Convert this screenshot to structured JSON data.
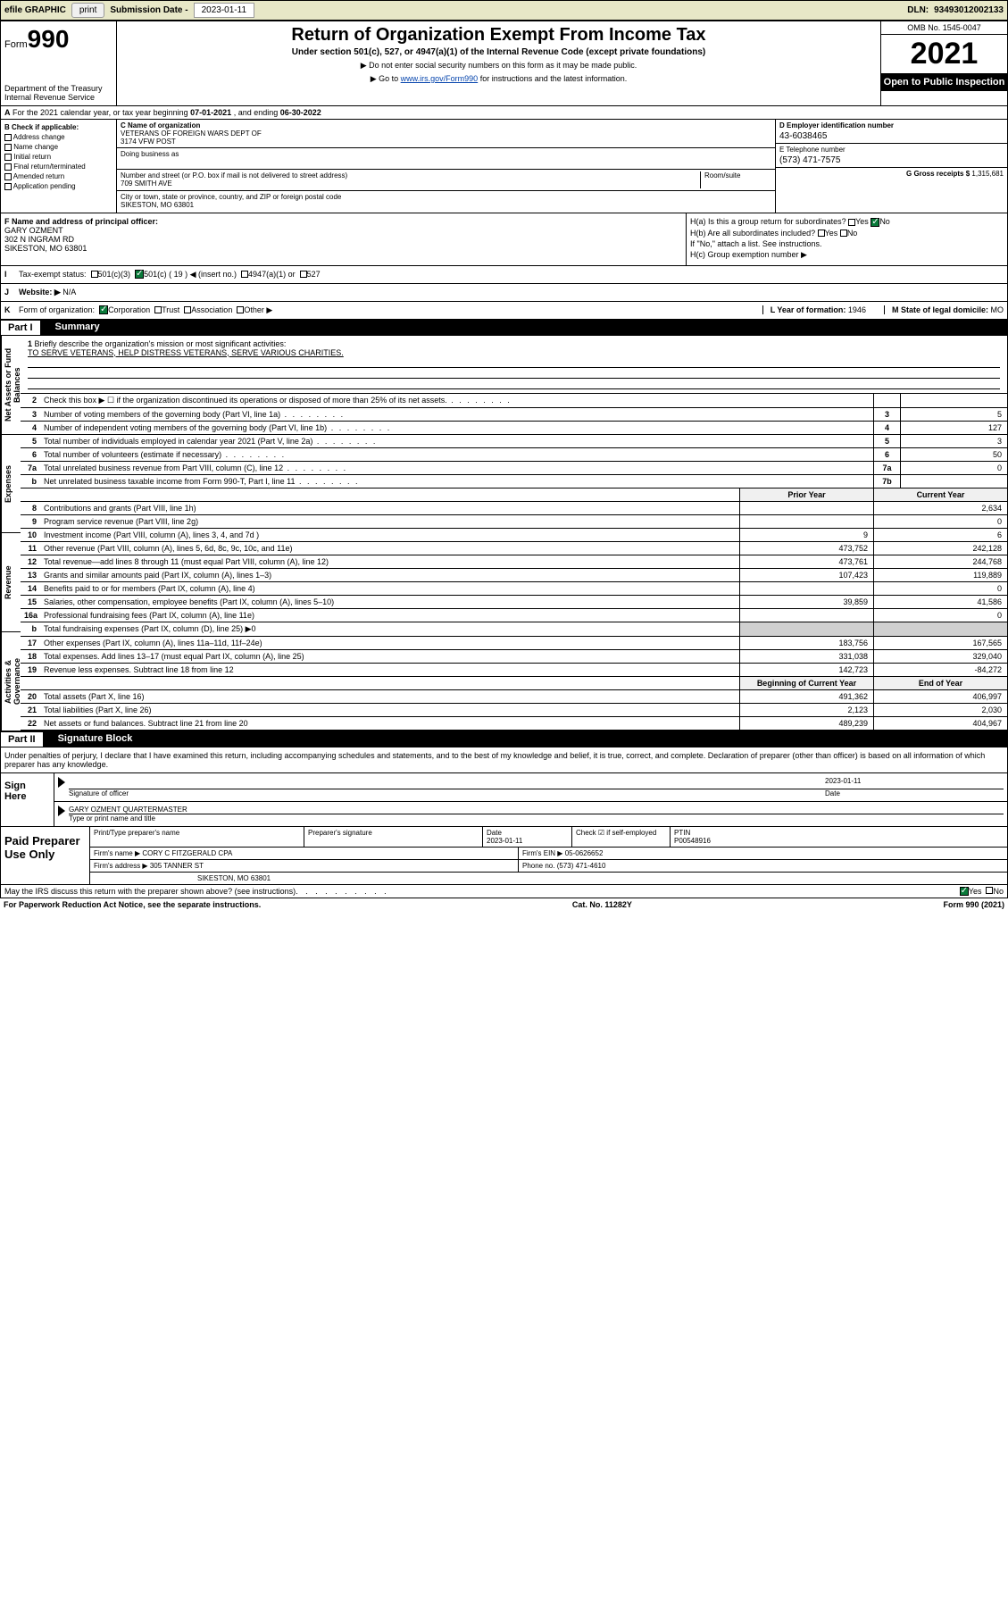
{
  "topbar": {
    "efile_label": "efile GRAPHIC",
    "print_btn": "print",
    "submission_label": "Submission Date -",
    "submission_date": "2023-01-11",
    "dln_label": "DLN:",
    "dln": "93493012002133"
  },
  "header": {
    "form_prefix": "Form",
    "form_number": "990",
    "dept": "Department of the Treasury",
    "irs": "Internal Revenue Service",
    "title": "Return of Organization Exempt From Income Tax",
    "subtitle": "Under section 501(c), 527, or 4947(a)(1) of the Internal Revenue Code (except private foundations)",
    "note1": "▶ Do not enter social security numbers on this form as it may be made public.",
    "note2_pre": "▶ Go to ",
    "note2_link": "www.irs.gov/Form990",
    "note2_post": " for instructions and the latest information.",
    "omb": "OMB No. 1545-0047",
    "year": "2021",
    "open_public": "Open to Public Inspection"
  },
  "row_a": {
    "label_a": "A",
    "text": "For the 2021 calendar year, or tax year beginning ",
    "begin": "07-01-2021",
    "mid": " , and ending ",
    "end": "06-30-2022"
  },
  "col_b": {
    "label": "B Check if applicable:",
    "opt1": "Address change",
    "opt2": "Name change",
    "opt3": "Initial return",
    "opt4": "Final return/terminated",
    "opt5": "Amended return",
    "opt6": "Application pending"
  },
  "col_c": {
    "c_label": "C Name of organization",
    "org_name1": "VETERANS OF FOREIGN WARS DEPT OF",
    "org_name2": "3174 VFW POST",
    "dba_label": "Doing business as",
    "addr_label": "Number and street (or P.O. box if mail is not delivered to street address)",
    "room_label": "Room/suite",
    "street": "709 SMITH AVE",
    "city_label": "City or town, state or province, country, and ZIP or foreign postal code",
    "city": "SIKESTON, MO  63801"
  },
  "col_de": {
    "d_label": "D Employer identification number",
    "ein": "43-6038465",
    "e_label": "E Telephone number",
    "phone": "(573) 471-7575",
    "g_label": "G Gross receipts $",
    "gross": "1,315,681"
  },
  "col_f": {
    "label": "F Name and address of principal officer:",
    "name": "GARY OZMENT",
    "addr1": "302 N INGRAM RD",
    "addr2": "SIKESTON, MO  63801"
  },
  "col_h": {
    "ha_label": "H(a)  Is this a group return for subordinates?",
    "hb_label": "H(b)  Are all subordinates included?",
    "hb_note": "If \"No,\" attach a list. See instructions.",
    "hc_label": "H(c)  Group exemption number ▶",
    "yes": "Yes",
    "no": "No"
  },
  "row_i": {
    "label": "I",
    "text": "Tax-exempt status:",
    "o1": "501(c)(3)",
    "o2": "501(c) ( 19 ) ◀ (insert no.)",
    "o3": "4947(a)(1) or",
    "o4": "527"
  },
  "row_j": {
    "label": "J",
    "text": "Website: ▶",
    "val": "N/A"
  },
  "row_k": {
    "label": "K",
    "text": "Form of organization:",
    "o1": "Corporation",
    "o2": "Trust",
    "o3": "Association",
    "o4": "Other ▶",
    "l_label": "L Year of formation:",
    "l_val": "1946",
    "m_label": "M State of legal domicile:",
    "m_val": "MO"
  },
  "part1": {
    "num": "Part I",
    "title": "Summary"
  },
  "sidebar": {
    "s1": "Activities & Governance",
    "s2": "Revenue",
    "s3": "Expenses",
    "s4": "Net Assets or Fund Balances"
  },
  "mission": {
    "num": "1",
    "label": "Briefly describe the organization's mission or most significant activities:",
    "text": "TO SERVE VETERANS, HELP DISTRESS VETERANS, SERVE VARIOUS CHARITIES."
  },
  "lines_single": [
    {
      "n": "2",
      "d": "Check this box ▶ ☐  if the organization discontinued its operations or disposed of more than 25% of its net assets.",
      "box": "",
      "val": ""
    },
    {
      "n": "3",
      "d": "Number of voting members of the governing body (Part VI, line 1a)",
      "box": "3",
      "val": "5"
    },
    {
      "n": "4",
      "d": "Number of independent voting members of the governing body (Part VI, line 1b)",
      "box": "4",
      "val": "127"
    },
    {
      "n": "5",
      "d": "Total number of individuals employed in calendar year 2021 (Part V, line 2a)",
      "box": "5",
      "val": "3"
    },
    {
      "n": "6",
      "d": "Total number of volunteers (estimate if necessary)",
      "box": "6",
      "val": "50"
    },
    {
      "n": "7a",
      "d": "Total unrelated business revenue from Part VIII, column (C), line 12",
      "box": "7a",
      "val": "0"
    },
    {
      "n": "b",
      "d": "Net unrelated business taxable income from Form 990-T, Part I, line 11",
      "box": "7b",
      "val": ""
    }
  ],
  "cols_header": {
    "prior": "Prior Year",
    "current": "Current Year",
    "beg": "Beginning of Current Year",
    "end": "End of Year"
  },
  "revenue": [
    {
      "n": "8",
      "d": "Contributions and grants (Part VIII, line 1h)",
      "p": "",
      "c": "2,634"
    },
    {
      "n": "9",
      "d": "Program service revenue (Part VIII, line 2g)",
      "p": "",
      "c": "0"
    },
    {
      "n": "10",
      "d": "Investment income (Part VIII, column (A), lines 3, 4, and 7d )",
      "p": "9",
      "c": "6"
    },
    {
      "n": "11",
      "d": "Other revenue (Part VIII, column (A), lines 5, 6d, 8c, 9c, 10c, and 11e)",
      "p": "473,752",
      "c": "242,128"
    },
    {
      "n": "12",
      "d": "Total revenue—add lines 8 through 11 (must equal Part VIII, column (A), line 12)",
      "p": "473,761",
      "c": "244,768"
    }
  ],
  "expenses": [
    {
      "n": "13",
      "d": "Grants and similar amounts paid (Part IX, column (A), lines 1–3)",
      "p": "107,423",
      "c": "119,889"
    },
    {
      "n": "14",
      "d": "Benefits paid to or for members (Part IX, column (A), line 4)",
      "p": "",
      "c": "0"
    },
    {
      "n": "15",
      "d": "Salaries, other compensation, employee benefits (Part IX, column (A), lines 5–10)",
      "p": "39,859",
      "c": "41,586"
    },
    {
      "n": "16a",
      "d": "Professional fundraising fees (Part IX, column (A), line 11e)",
      "p": "",
      "c": "0"
    },
    {
      "n": "b",
      "d": "Total fundraising expenses (Part IX, column (D), line 25) ▶0",
      "p": "shade",
      "c": "shade"
    },
    {
      "n": "17",
      "d": "Other expenses (Part IX, column (A), lines 11a–11d, 11f–24e)",
      "p": "183,756",
      "c": "167,565"
    },
    {
      "n": "18",
      "d": "Total expenses. Add lines 13–17 (must equal Part IX, column (A), line 25)",
      "p": "331,038",
      "c": "329,040"
    },
    {
      "n": "19",
      "d": "Revenue less expenses. Subtract line 18 from line 12",
      "p": "142,723",
      "c": "-84,272"
    }
  ],
  "netassets": [
    {
      "n": "20",
      "d": "Total assets (Part X, line 16)",
      "p": "491,362",
      "c": "406,997"
    },
    {
      "n": "21",
      "d": "Total liabilities (Part X, line 26)",
      "p": "2,123",
      "c": "2,030"
    },
    {
      "n": "22",
      "d": "Net assets or fund balances. Subtract line 21 from line 20",
      "p": "489,239",
      "c": "404,967"
    }
  ],
  "part2": {
    "num": "Part II",
    "title": "Signature Block"
  },
  "sig_intro": "Under penalties of perjury, I declare that I have examined this return, including accompanying schedules and statements, and to the best of my knowledge and belief, it is true, correct, and complete. Declaration of preparer (other than officer) is based on all information of which preparer has any knowledge.",
  "sign": {
    "left": "Sign Here",
    "sig_label": "Signature of officer",
    "date_label": "Date",
    "date": "2023-01-11",
    "name": "GARY OZMENT QUARTERMASTER",
    "name_label": "Type or print name and title"
  },
  "paid": {
    "left": "Paid Preparer Use Only",
    "h1": "Print/Type preparer's name",
    "h2": "Preparer's signature",
    "h3": "Date",
    "h3v": "2023-01-11",
    "h4": "Check ☑ if self-employed",
    "h5": "PTIN",
    "h5v": "P00548916",
    "firm_label": "Firm's name    ▶",
    "firm": "CORY C FITZGERALD CPA",
    "ein_label": "Firm's EIN ▶",
    "ein": "05-0626652",
    "addr_label": "Firm's address ▶",
    "addr1": "305 TANNER ST",
    "addr2": "SIKESTON, MO  63801",
    "phone_label": "Phone no.",
    "phone": "(573) 471-4610"
  },
  "footer": {
    "may": "May the IRS discuss this return with the preparer shown above? (see instructions)",
    "yes": "Yes",
    "no": "No",
    "pra": "For Paperwork Reduction Act Notice, see the separate instructions.",
    "cat": "Cat. No. 11282Y",
    "form": "Form 990 (2021)"
  }
}
